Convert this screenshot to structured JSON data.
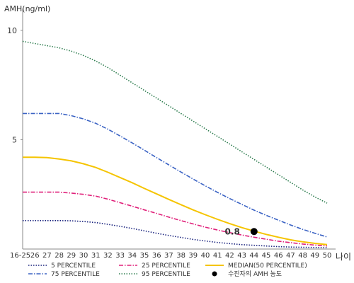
{
  "chart_data": {
    "type": "line",
    "xlabel": "나이",
    "ylabel": "AMH(ng/ml)",
    "x": [
      "16-25",
      "26",
      "27",
      "28",
      "29",
      "30",
      "31",
      "32",
      "33",
      "34",
      "35",
      "36",
      "37",
      "38",
      "39",
      "40",
      "41",
      "42",
      "43",
      "44",
      "45",
      "46",
      "47",
      "48",
      "49",
      "50"
    ],
    "yticks": [
      5,
      10
    ],
    "ylim": [
      0,
      11
    ],
    "grid": false,
    "legend_position": "bottom",
    "series": [
      {
        "name": "5 PERCENTILE",
        "color": "#1a237e",
        "style": "dotted",
        "values": [
          1.3,
          1.3,
          1.3,
          1.3,
          1.29,
          1.26,
          1.21,
          1.13,
          1.04,
          0.94,
          0.83,
          0.72,
          0.62,
          0.53,
          0.44,
          0.37,
          0.3,
          0.25,
          0.2,
          0.17,
          0.14,
          0.11,
          0.09,
          0.08,
          0.07,
          0.06
        ]
      },
      {
        "name": "25 PERCENTILE",
        "color": "#e0207a",
        "style": "dashdot",
        "values": [
          2.6,
          2.6,
          2.6,
          2.6,
          2.56,
          2.5,
          2.42,
          2.28,
          2.12,
          1.96,
          1.79,
          1.63,
          1.46,
          1.3,
          1.15,
          1.0,
          0.87,
          0.75,
          0.64,
          0.54,
          0.45,
          0.36,
          0.29,
          0.23,
          0.18,
          0.14
        ]
      },
      {
        "name": "MEDIAN(50 PERCENTILE)",
        "color": "#f5c400",
        "style": "solid",
        "values": [
          4.2,
          4.2,
          4.18,
          4.12,
          4.03,
          3.9,
          3.73,
          3.51,
          3.27,
          3.03,
          2.77,
          2.52,
          2.27,
          2.03,
          1.79,
          1.57,
          1.36,
          1.16,
          0.98,
          0.82,
          0.67,
          0.54,
          0.42,
          0.33,
          0.26,
          0.2
        ]
      },
      {
        "name": "75 PERCENTILE",
        "color": "#3b63c4",
        "style": "dashdot",
        "values": [
          6.2,
          6.2,
          6.2,
          6.2,
          6.1,
          5.95,
          5.75,
          5.48,
          5.17,
          4.85,
          4.52,
          4.18,
          3.85,
          3.52,
          3.2,
          2.89,
          2.59,
          2.31,
          2.04,
          1.78,
          1.54,
          1.32,
          1.1,
          0.9,
          0.72,
          0.55
        ]
      },
      {
        "name": "95 PERCENTILE",
        "color": "#2e7d4f",
        "style": "dotted",
        "values": [
          9.5,
          9.4,
          9.3,
          9.2,
          9.05,
          8.85,
          8.6,
          8.3,
          7.95,
          7.6,
          7.25,
          6.9,
          6.55,
          6.2,
          5.85,
          5.5,
          5.15,
          4.8,
          4.45,
          4.1,
          3.75,
          3.4,
          3.05,
          2.7,
          2.38,
          2.1
        ]
      }
    ],
    "marker": {
      "name": "수진자의 AMH 농도",
      "x": "44",
      "y": 0.8,
      "label": "0.8",
      "color": "#000000"
    }
  }
}
